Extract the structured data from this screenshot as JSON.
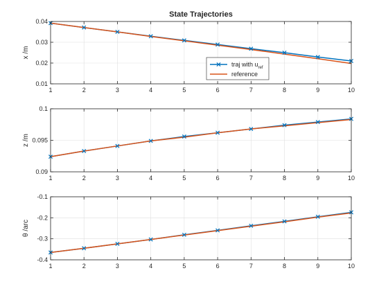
{
  "figure": {
    "title": "State Trajectories"
  },
  "colors": {
    "traj": "#0072BD",
    "reference": "#D95319",
    "grid": "#DFDFDF",
    "axis": "#262626"
  },
  "chart_data": [
    {
      "type": "line",
      "title": "State Trajectories",
      "xlabel": "",
      "ylabel": "x /m",
      "xlim": [
        1,
        10
      ],
      "ylim": [
        0.01,
        0.04
      ],
      "xticks": [
        1,
        2,
        3,
        4,
        5,
        6,
        7,
        8,
        9,
        10
      ],
      "yticks": [
        0.01,
        0.02,
        0.03,
        0.04
      ],
      "xtick_labels": [
        "1",
        "2",
        "3",
        "4",
        "5",
        "6",
        "7",
        "8",
        "9",
        "10"
      ],
      "ytick_labels": [
        "0.01",
        "0.02",
        "0.03",
        "0.04"
      ],
      "grid": true,
      "legend": {
        "position": "inside lower right",
        "entries": [
          "traj with u",
          "reference"
        ],
        "subscript": "ref"
      },
      "x": [
        1,
        2,
        3,
        4,
        5,
        6,
        7,
        8,
        9,
        10
      ],
      "series": [
        {
          "name": "traj with u_ref",
          "marker": "x",
          "values": [
            0.0392,
            0.0371,
            0.035,
            0.0329,
            0.0309,
            0.0289,
            0.0269,
            0.025,
            0.0229,
            0.021
          ]
        },
        {
          "name": "reference",
          "marker": "none",
          "values": [
            0.0392,
            0.0371,
            0.035,
            0.0328,
            0.0307,
            0.0286,
            0.0265,
            0.0243,
            0.0221,
            0.0198
          ]
        }
      ]
    },
    {
      "type": "line",
      "xlabel": "",
      "ylabel": "z /m",
      "xlim": [
        1,
        10
      ],
      "ylim": [
        0.09,
        0.1
      ],
      "xticks": [
        1,
        2,
        3,
        4,
        5,
        6,
        7,
        8,
        9,
        10
      ],
      "yticks": [
        0.09,
        0.095,
        0.1
      ],
      "xtick_labels": [
        "1",
        "2",
        "3",
        "4",
        "5",
        "6",
        "7",
        "8",
        "9",
        "10"
      ],
      "ytick_labels": [
        "0.09",
        "0.095",
        "0.1"
      ],
      "grid": true,
      "x": [
        1,
        2,
        3,
        4,
        5,
        6,
        7,
        8,
        9,
        10
      ],
      "series": [
        {
          "name": "traj with u_ref",
          "marker": "x",
          "values": [
            0.0924,
            0.0933,
            0.0941,
            0.0949,
            0.0956,
            0.0962,
            0.0968,
            0.0974,
            0.0979,
            0.0984
          ]
        },
        {
          "name": "reference",
          "marker": "none",
          "values": [
            0.0924,
            0.0933,
            0.0941,
            0.0949,
            0.0955,
            0.0962,
            0.0968,
            0.0973,
            0.0978,
            0.0983
          ]
        }
      ]
    },
    {
      "type": "line",
      "xlabel": "",
      "ylabel": "θ /arc",
      "xlim": [
        1,
        10
      ],
      "ylim": [
        -0.4,
        -0.1
      ],
      "xticks": [
        1,
        2,
        3,
        4,
        5,
        6,
        7,
        8,
        9,
        10
      ],
      "yticks": [
        -0.4,
        -0.3,
        -0.2,
        -0.1
      ],
      "xtick_labels": [
        "1",
        "2",
        "3",
        "4",
        "5",
        "6",
        "7",
        "8",
        "9",
        "10"
      ],
      "ytick_labels": [
        "-0.4",
        "-0.3",
        "-0.2",
        "-0.1"
      ],
      "grid": true,
      "x": [
        1,
        2,
        3,
        4,
        5,
        6,
        7,
        8,
        9,
        10
      ],
      "series": [
        {
          "name": "traj with u_ref",
          "marker": "x",
          "values": [
            -0.365,
            -0.345,
            -0.324,
            -0.303,
            -0.281,
            -0.26,
            -0.238,
            -0.217,
            -0.195,
            -0.174
          ]
        },
        {
          "name": "reference",
          "marker": "none",
          "values": [
            -0.365,
            -0.345,
            -0.324,
            -0.303,
            -0.282,
            -0.261,
            -0.24,
            -0.219,
            -0.197,
            -0.177
          ]
        }
      ]
    }
  ]
}
